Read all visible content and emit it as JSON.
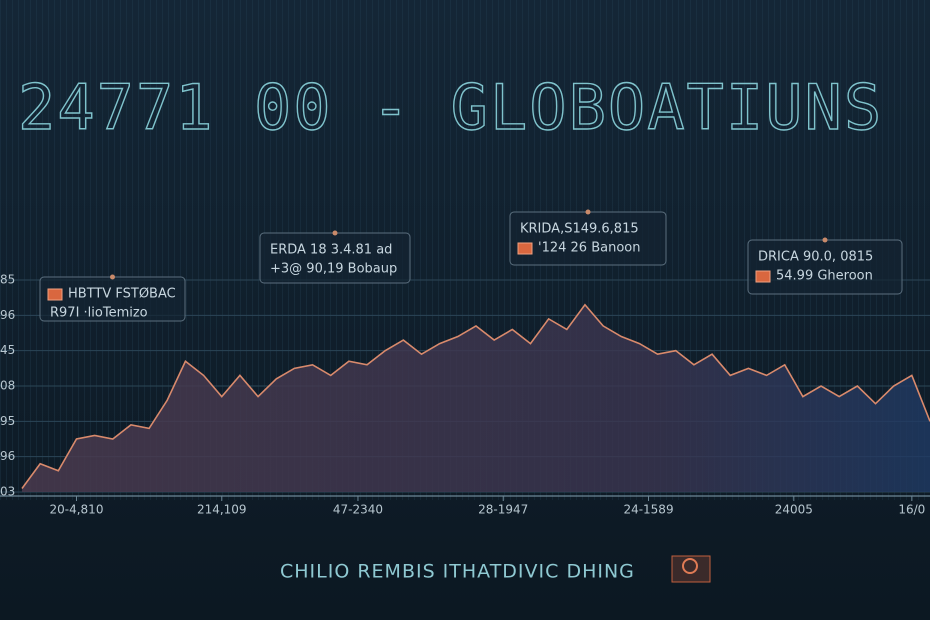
{
  "chart_data": {
    "type": "area",
    "title": "24771 00 - GLOBOATIUNS",
    "caption": "CHILIO REMBIS ITHATDIVIC DHING",
    "x": [
      0,
      2,
      4,
      6,
      8,
      10,
      12,
      14,
      16,
      18,
      20,
      22,
      24,
      26,
      28,
      30,
      32,
      34,
      36,
      38,
      40,
      42,
      44,
      46,
      48,
      50,
      52,
      54,
      56,
      58,
      60,
      62,
      64,
      66,
      68,
      70,
      72,
      74,
      76,
      78,
      80,
      82,
      84,
      86,
      88,
      90,
      92,
      94,
      96,
      98,
      100
    ],
    "series": [
      {
        "color": "#d98a6c",
        "values": [
          0.1,
          0.8,
          0.6,
          1.5,
          1.6,
          1.5,
          1.9,
          1.8,
          2.6,
          3.7,
          3.3,
          2.7,
          3.3,
          2.7,
          3.2,
          3.5,
          3.6,
          3.3,
          3.7,
          3.6,
          4.0,
          4.3,
          3.9,
          4.2,
          4.4,
          4.7,
          4.3,
          4.6,
          4.2,
          4.9,
          4.6,
          5.3,
          4.7,
          4.4,
          4.2,
          3.9,
          4.0,
          3.6,
          3.9,
          3.3,
          3.5,
          3.3,
          3.6,
          2.7,
          3.0,
          2.7,
          3.0,
          2.5,
          3.0,
          3.3,
          2.0
        ]
      }
    ],
    "xlim": [
      0,
      100
    ],
    "ylim": [
      0,
      6
    ],
    "xticks": [
      {
        "value": 6,
        "label": "20-4,810"
      },
      {
        "value": 22,
        "label": "214,109"
      },
      {
        "value": 37,
        "label": "47-2340"
      },
      {
        "value": 53,
        "label": "28-1947"
      },
      {
        "value": 69,
        "label": "24-1589"
      },
      {
        "value": 85,
        "label": "24005"
      },
      {
        "value": 98,
        "label": "16/0"
      }
    ],
    "yticks": [
      {
        "value": 0,
        "label": "03"
      },
      {
        "value": 1,
        "label": "96"
      },
      {
        "value": 2,
        "label": "95"
      },
      {
        "value": 3,
        "label": "08"
      },
      {
        "value": 4,
        "label": "45"
      },
      {
        "value": 5,
        "label": "96"
      },
      {
        "value": 6,
        "label": "85"
      }
    ],
    "grid": true,
    "annotations": [
      {
        "lines": [
          "HBTTV FSTØBAC",
          "R97I ·lioTemizo"
        ]
      },
      {
        "lines": [
          "ERDA 18 3.4.81 ad",
          "+3@ 90,19 Bobaup"
        ]
      },
      {
        "lines": [
          "KRIDA,S149.6,815",
          "'124 26 Banoon"
        ]
      },
      {
        "lines": [
          "DRICA 90.0, 0815",
          "54.99 Gheroon"
        ]
      }
    ]
  }
}
